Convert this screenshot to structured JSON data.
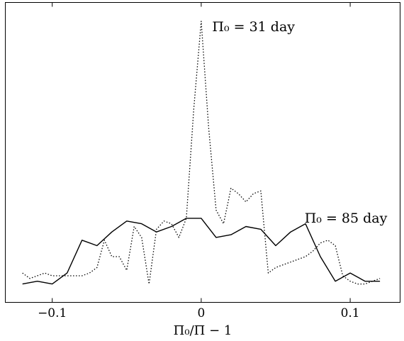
{
  "chart_data": {
    "type": "line",
    "title": "",
    "xlabel": "Π₀/Π − 1",
    "ylabel": "",
    "xlim": [
      -0.1315,
      0.1335
    ],
    "ylim": [
      0,
      1
    ],
    "xticks": [
      {
        "value": -0.1,
        "label": "−0.1"
      },
      {
        "value": 0,
        "label": "0"
      },
      {
        "value": 0.1,
        "label": "0.1"
      }
    ],
    "grid": false,
    "legend": "none",
    "series": [
      {
        "style": "dotted",
        "color": "#000000",
        "x": [
          -0.12,
          -0.115,
          -0.11,
          -0.105,
          -0.1,
          -0.095,
          -0.09,
          -0.085,
          -0.08,
          -0.075,
          -0.07,
          -0.065,
          -0.06,
          -0.055,
          -0.05,
          -0.045,
          -0.04,
          -0.035,
          -0.03,
          -0.025,
          -0.02,
          -0.015,
          -0.01,
          -0.005,
          0,
          0.005,
          0.01,
          0.015,
          0.02,
          0.025,
          0.03,
          0.035,
          0.04,
          0.045,
          0.05,
          0.055,
          0.06,
          0.065,
          0.07,
          0.075,
          0.08,
          0.085,
          0.09,
          0.095,
          0.1,
          0.105,
          0.11,
          0.115,
          0.12
        ],
        "values": [
          0.08,
          0.06,
          0.07,
          0.08,
          0.07,
          0.07,
          0.07,
          0.07,
          0.07,
          0.08,
          0.1,
          0.2,
          0.14,
          0.14,
          0.09,
          0.25,
          0.21,
          0.04,
          0.24,
          0.27,
          0.26,
          0.21,
          0.28,
          0.68,
          1.0,
          0.61,
          0.31,
          0.26,
          0.39,
          0.37,
          0.34,
          0.37,
          0.38,
          0.08,
          0.1,
          0.11,
          0.12,
          0.13,
          0.14,
          0.16,
          0.19,
          0.2,
          0.18,
          0.07,
          0.05,
          0.04,
          0.04,
          0.05,
          0.06
        ]
      },
      {
        "style": "solid",
        "color": "#000000",
        "x": [
          -0.12,
          -0.11,
          -0.1,
          -0.09,
          -0.08,
          -0.07,
          -0.06,
          -0.05,
          -0.04,
          -0.03,
          -0.02,
          -0.01,
          0,
          0.01,
          0.02,
          0.03,
          0.04,
          0.05,
          0.06,
          0.07,
          0.08,
          0.09,
          0.1,
          0.11,
          0.12
        ],
        "values": [
          0.04,
          0.05,
          0.04,
          0.08,
          0.2,
          0.18,
          0.23,
          0.27,
          0.26,
          0.23,
          0.25,
          0.28,
          0.28,
          0.21,
          0.22,
          0.25,
          0.24,
          0.18,
          0.23,
          0.26,
          0.14,
          0.05,
          0.08,
          0.05,
          0.05
        ]
      }
    ],
    "annotations": [
      {
        "text": "Π₀ = 31 day",
        "x": 0.005,
        "y": 1.0
      },
      {
        "text": "Π₀ = 85 day",
        "x": 0.067,
        "y": 0.3
      }
    ]
  }
}
